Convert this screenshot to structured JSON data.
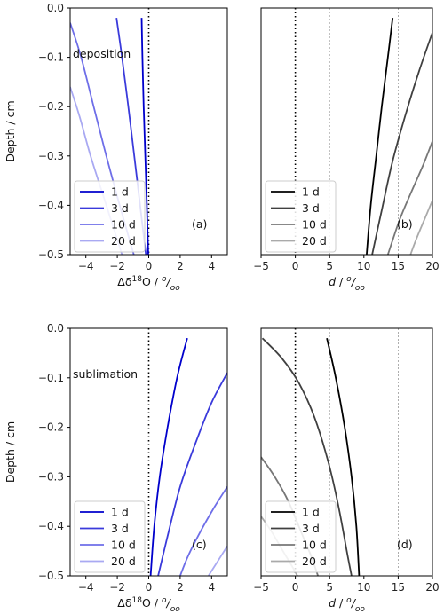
{
  "chart_data": [
    {
      "type": "line",
      "panel_label": "(a)",
      "annotation": "deposition",
      "xlabel": "Δδ¹⁸O / ⁰/₀₀",
      "xlabel_parts": {
        "prefix": "Δδ",
        "sup": "18",
        "mid": "O / ",
        "unit_a": "o",
        "unit_b": "oo"
      },
      "ylabel": "Depth / cm",
      "xlim": [
        -5,
        5
      ],
      "ylim": [
        -0.5,
        0.0
      ],
      "xticks": [
        -4,
        -2,
        0,
        2,
        4
      ],
      "yticks": [
        0.0,
        -0.1,
        -0.2,
        -0.3,
        -0.4,
        -0.5
      ],
      "ytick_labels": [
        "0.0",
        "−0.1",
        "−0.2",
        "−0.3",
        "−0.4",
        "−0.5"
      ],
      "xtick_labels": [
        "−4",
        "−2",
        "0",
        "2",
        "4"
      ],
      "reference_lines": [
        0
      ],
      "legend_location": "lower-left",
      "series": [
        {
          "name": "1 d",
          "color": "#0000cc",
          "points": [
            [
              -0.45,
              -0.02
            ],
            [
              -0.4,
              -0.1
            ],
            [
              -0.32,
              -0.2
            ],
            [
              -0.22,
              -0.3
            ],
            [
              -0.12,
              -0.4
            ],
            [
              -0.03,
              -0.5
            ]
          ]
        },
        {
          "name": "3 d",
          "color": "#3a3adb",
          "points": [
            [
              -2.05,
              -0.02
            ],
            [
              -1.7,
              -0.1
            ],
            [
              -1.3,
              -0.2
            ],
            [
              -0.92,
              -0.3
            ],
            [
              -0.55,
              -0.4
            ],
            [
              -0.18,
              -0.5
            ]
          ]
        },
        {
          "name": "10 d",
          "color": "#6e6ee8",
          "points": [
            [
              -5.0,
              -0.03
            ],
            [
              -4.3,
              -0.1
            ],
            [
              -3.5,
              -0.2
            ],
            [
              -2.7,
              -0.3
            ],
            [
              -1.85,
              -0.4
            ],
            [
              -0.95,
              -0.5
            ]
          ]
        },
        {
          "name": "20 d",
          "color": "#a9a9f2",
          "points": [
            [
              -5.0,
              -0.16
            ],
            [
              -4.4,
              -0.22
            ],
            [
              -3.7,
              -0.3
            ],
            [
              -2.9,
              -0.38
            ],
            [
              -2.2,
              -0.45
            ],
            [
              -1.7,
              -0.5
            ]
          ]
        }
      ]
    },
    {
      "type": "line",
      "panel_label": "(b)",
      "annotation": "",
      "xlabel": "d  / ⁰/₀₀",
      "xlabel_parts": {
        "prefix": "d",
        "sup": "",
        "mid": "  / ",
        "unit_a": "o",
        "unit_b": "oo"
      },
      "ylabel": "",
      "xlim": [
        -5,
        20
      ],
      "ylim": [
        -0.5,
        0.0
      ],
      "xticks": [
        -5,
        0,
        5,
        10,
        15,
        20
      ],
      "xtick_labels": [
        "−5",
        "0",
        "5",
        "10",
        "15",
        "20"
      ],
      "yticks": [],
      "reference_lines": [
        0
      ],
      "guide_lines": [
        5,
        15
      ],
      "legend_location": "lower-left",
      "series": [
        {
          "name": "1 d",
          "color": "#000000",
          "points": [
            [
              14.2,
              -0.02
            ],
            [
              13.5,
              -0.1
            ],
            [
              12.6,
              -0.2
            ],
            [
              11.8,
              -0.3
            ],
            [
              11.0,
              -0.4
            ],
            [
              10.4,
              -0.5
            ]
          ]
        },
        {
          "name": "3 d",
          "color": "#404040",
          "points": [
            [
              20.0,
              -0.05
            ],
            [
              18.0,
              -0.13
            ],
            [
              16.0,
              -0.22
            ],
            [
              14.2,
              -0.31
            ],
            [
              12.6,
              -0.41
            ],
            [
              11.2,
              -0.5
            ]
          ]
        },
        {
          "name": "10 d",
          "color": "#777777",
          "points": [
            [
              20.0,
              -0.27
            ],
            [
              18.6,
              -0.32
            ],
            [
              16.7,
              -0.38
            ],
            [
              15.2,
              -0.43
            ],
            [
              13.5,
              -0.5
            ]
          ]
        },
        {
          "name": "20 d",
          "color": "#aaaaaa",
          "points": [
            [
              20.0,
              -0.39
            ],
            [
              18.8,
              -0.43
            ],
            [
              17.6,
              -0.47
            ],
            [
              16.8,
              -0.5
            ]
          ]
        }
      ]
    },
    {
      "type": "line",
      "panel_label": "(c)",
      "annotation": "sublimation",
      "xlabel": "Δδ¹⁸O / ⁰/₀₀",
      "xlabel_parts": {
        "prefix": "Δδ",
        "sup": "18",
        "mid": "O / ",
        "unit_a": "o",
        "unit_b": "oo"
      },
      "ylabel": "Depth / cm",
      "xlim": [
        -5,
        5
      ],
      "ylim": [
        -0.5,
        0.0
      ],
      "xticks": [
        -4,
        -2,
        0,
        2,
        4
      ],
      "xtick_labels": [
        "−4",
        "−2",
        "0",
        "2",
        "4"
      ],
      "yticks": [
        0.0,
        -0.1,
        -0.2,
        -0.3,
        -0.4,
        -0.5
      ],
      "ytick_labels": [
        "0.0",
        "−0.1",
        "−0.2",
        "−0.3",
        "−0.4",
        "−0.5"
      ],
      "reference_lines": [
        0
      ],
      "legend_location": "lower-left",
      "series": [
        {
          "name": "1 d",
          "color": "#0000cc",
          "points": [
            [
              2.45,
              -0.02
            ],
            [
              1.8,
              -0.1
            ],
            [
              1.2,
              -0.2
            ],
            [
              0.7,
              -0.3
            ],
            [
              0.35,
              -0.4
            ],
            [
              0.12,
              -0.5
            ]
          ]
        },
        {
          "name": "3 d",
          "color": "#3a3adb",
          "points": [
            [
              5.0,
              -0.09
            ],
            [
              4.0,
              -0.15
            ],
            [
              3.0,
              -0.23
            ],
            [
              2.0,
              -0.32
            ],
            [
              1.2,
              -0.42
            ],
            [
              0.6,
              -0.5
            ]
          ]
        },
        {
          "name": "10 d",
          "color": "#6e6ee8",
          "points": [
            [
              5.0,
              -0.32
            ],
            [
              4.2,
              -0.36
            ],
            [
              3.3,
              -0.41
            ],
            [
              2.5,
              -0.46
            ],
            [
              2.0,
              -0.5
            ]
          ]
        },
        {
          "name": "20 d",
          "color": "#a9a9f2",
          "points": [
            [
              5.0,
              -0.44
            ],
            [
              4.6,
              -0.46
            ],
            [
              4.0,
              -0.49
            ],
            [
              3.8,
              -0.5
            ]
          ]
        }
      ]
    },
    {
      "type": "line",
      "panel_label": "(d)",
      "annotation": "",
      "xlabel": "d  / ⁰/₀₀",
      "xlabel_parts": {
        "prefix": "d",
        "sup": "",
        "mid": "  / ",
        "unit_a": "o",
        "unit_b": "oo"
      },
      "ylabel": "",
      "xlim": [
        -5,
        20
      ],
      "ylim": [
        -0.5,
        0.0
      ],
      "xticks": [
        -5,
        0,
        5,
        10,
        15,
        20
      ],
      "xtick_labels": [
        "−5",
        "0",
        "5",
        "10",
        "15",
        "20"
      ],
      "yticks": [],
      "reference_lines": [
        0
      ],
      "guide_lines": [
        5,
        15
      ],
      "legend_location": "lower-left",
      "series": [
        {
          "name": "1 d",
          "color": "#000000",
          "points": [
            [
              4.6,
              -0.02
            ],
            [
              5.9,
              -0.1
            ],
            [
              7.2,
              -0.2
            ],
            [
              8.2,
              -0.3
            ],
            [
              8.9,
              -0.4
            ],
            [
              9.3,
              -0.5
            ]
          ]
        },
        {
          "name": "3 d",
          "color": "#404040",
          "points": [
            [
              -4.8,
              -0.02
            ],
            [
              -2.0,
              -0.06
            ],
            [
              0.5,
              -0.11
            ],
            [
              2.8,
              -0.18
            ],
            [
              4.8,
              -0.27
            ],
            [
              6.3,
              -0.36
            ],
            [
              7.5,
              -0.45
            ],
            [
              8.2,
              -0.5
            ]
          ]
        },
        {
          "name": "10 d",
          "color": "#777777",
          "points": [
            [
              -5.0,
              -0.26
            ],
            [
              -3.0,
              -0.3
            ],
            [
              -1.0,
              -0.35
            ],
            [
              0.8,
              -0.41
            ],
            [
              2.3,
              -0.46
            ],
            [
              3.3,
              -0.5
            ]
          ]
        },
        {
          "name": "20 d",
          "color": "#aaaaaa",
          "points": [
            [
              -5.0,
              -0.38
            ],
            [
              -3.5,
              -0.41
            ],
            [
              -1.8,
              -0.45
            ],
            [
              -0.5,
              -0.48
            ],
            [
              0.3,
              -0.5
            ]
          ]
        }
      ]
    }
  ]
}
